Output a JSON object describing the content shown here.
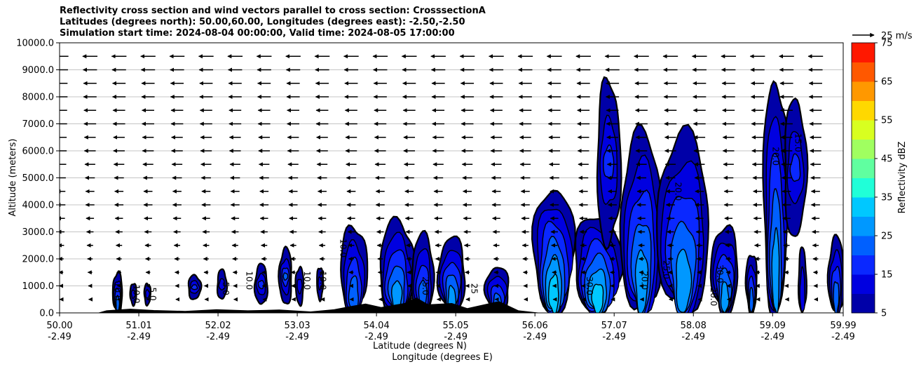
{
  "title": {
    "line1": "Reflectivity cross section and wind vectors parallel to cross section: CrosssectionA",
    "line2": "Latitudes (degrees north): 50.00,60.00, Longitudes (degrees east): -2.50,-2.50",
    "line3": "Simulation start time: 2024-08-04 00:00:00, Valid time: 2024-08-05 17:00:00"
  },
  "chart_data": {
    "type": "heatmap",
    "xlabel_line1": "Latitude (degrees N)",
    "xlabel_line2": "Longitude (degrees E)",
    "ylabel": "Altitude (meters)",
    "ylim": [
      0,
      10000
    ],
    "xlim": [
      50.0,
      59.99
    ],
    "grid": "horizontal",
    "y_ticks": [
      {
        "value": 0,
        "label": "0.0"
      },
      {
        "value": 1000,
        "label": "1000.0"
      },
      {
        "value": 2000,
        "label": "2000.0"
      },
      {
        "value": 3000,
        "label": "3000.0"
      },
      {
        "value": 4000,
        "label": "4000.0"
      },
      {
        "value": 5000,
        "label": "5000.0"
      },
      {
        "value": 6000,
        "label": "6000.0"
      },
      {
        "value": 7000,
        "label": "7000.0"
      },
      {
        "value": 8000,
        "label": "8000.0"
      },
      {
        "value": 9000,
        "label": "9000.0"
      },
      {
        "value": 10000,
        "label": "10000.0"
      }
    ],
    "x_ticks": [
      {
        "value": 50.0,
        "lat": "50.00",
        "lon": "-2.49"
      },
      {
        "value": 51.01,
        "lat": "51.01",
        "lon": "-2.49"
      },
      {
        "value": 52.02,
        "lat": "52.02",
        "lon": "-2.49"
      },
      {
        "value": 53.03,
        "lat": "53.03",
        "lon": "-2.49"
      },
      {
        "value": 54.04,
        "lat": "54.04",
        "lon": "-2.49"
      },
      {
        "value": 55.05,
        "lat": "55.05",
        "lon": "-2.49"
      },
      {
        "value": 56.06,
        "lat": "56.06",
        "lon": "-2.49"
      },
      {
        "value": 57.07,
        "lat": "57.07",
        "lon": "-2.49"
      },
      {
        "value": 58.08,
        "lat": "58.08",
        "lon": "-2.49"
      },
      {
        "value": 59.09,
        "lat": "59.09",
        "lon": "-2.49"
      },
      {
        "value": 59.99,
        "lat": "59.99",
        "lon": "-2.49"
      }
    ],
    "colorbar": {
      "label": "Reflectivity dBZ",
      "min": 5,
      "max": 75,
      "step": 5,
      "tick_labels": [
        "5",
        "15",
        "25",
        "35",
        "45",
        "55",
        "65",
        "75"
      ],
      "colors": [
        "#0000a8",
        "#0000e0",
        "#0a28ff",
        "#0060ff",
        "#0098ff",
        "#00c8ff",
        "#20ffd8",
        "#60ffa0",
        "#a0ff60",
        "#d8ff20",
        "#ffd800",
        "#ff9800",
        "#ff5800",
        "#ff1800"
      ]
    },
    "quiver_key": {
      "label": "25 m/s",
      "speed": 25
    },
    "wind_speed_ms": {
      "heights": [
        500,
        1000,
        1500,
        2000,
        2500,
        3000,
        3500,
        4000,
        4500,
        5000,
        5500,
        6000,
        6500,
        7000,
        7500,
        8000,
        8500,
        9000,
        9500
      ],
      "speeds": [
        3,
        4,
        5,
        6,
        7,
        8,
        9,
        10,
        10,
        11,
        12,
        13,
        13,
        14,
        14,
        15,
        15,
        16,
        17
      ]
    },
    "cells": [
      {
        "lat": 50.74,
        "base": 0,
        "top": 1500,
        "halfwidth": 0.06,
        "peak": 25
      },
      {
        "lat": 50.94,
        "base": 300,
        "top": 1100,
        "halfwidth": 0.04,
        "peak": 15
      },
      {
        "lat": 51.12,
        "base": 300,
        "top": 1100,
        "halfwidth": 0.04,
        "peak": 15
      },
      {
        "lat": 51.72,
        "base": 500,
        "top": 1400,
        "halfwidth": 0.08,
        "peak": 20
      },
      {
        "lat": 52.07,
        "base": 500,
        "top": 1600,
        "halfwidth": 0.06,
        "peak": 15
      },
      {
        "lat": 52.57,
        "base": 300,
        "top": 1800,
        "halfwidth": 0.08,
        "peak": 20
      },
      {
        "lat": 52.88,
        "base": 300,
        "top": 2400,
        "halfwidth": 0.08,
        "peak": 25
      },
      {
        "lat": 53.06,
        "base": 300,
        "top": 1700,
        "halfwidth": 0.05,
        "peak": 15
      },
      {
        "lat": 53.32,
        "base": 500,
        "top": 1700,
        "halfwidth": 0.04,
        "peak": 15
      },
      {
        "lat": 53.75,
        "base": 0,
        "top": 3200,
        "halfwidth": 0.17,
        "peak": 25
      },
      {
        "lat": 54.3,
        "base": 0,
        "top": 3400,
        "halfwidth": 0.22,
        "peak": 30
      },
      {
        "lat": 54.63,
        "base": 0,
        "top": 2900,
        "halfwidth": 0.14,
        "peak": 25
      },
      {
        "lat": 55.0,
        "base": 0,
        "top": 2800,
        "halfwidth": 0.17,
        "peak": 30
      },
      {
        "lat": 55.58,
        "base": 0,
        "top": 1700,
        "halfwidth": 0.15,
        "peak": 25
      },
      {
        "lat": 56.3,
        "base": 0,
        "top": 4600,
        "halfwidth": 0.26,
        "peak": 35
      },
      {
        "lat": 56.86,
        "base": 0,
        "top": 3600,
        "halfwidth": 0.3,
        "peak": 35
      },
      {
        "lat": 57.0,
        "base": 2500,
        "top": 8600,
        "halfwidth": 0.15,
        "peak": 20
      },
      {
        "lat": 57.42,
        "base": 0,
        "top": 6600,
        "halfwidth": 0.27,
        "peak": 30
      },
      {
        "lat": 57.95,
        "base": 0,
        "top": 6600,
        "halfwidth": 0.33,
        "peak": 30
      },
      {
        "lat": 58.48,
        "base": 0,
        "top": 3200,
        "halfwidth": 0.17,
        "peak": 30
      },
      {
        "lat": 58.82,
        "base": 0,
        "top": 2200,
        "halfwidth": 0.07,
        "peak": 25
      },
      {
        "lat": 59.13,
        "base": 0,
        "top": 8600,
        "halfwidth": 0.16,
        "peak": 30
      },
      {
        "lat": 59.38,
        "base": 2800,
        "top": 7900,
        "halfwidth": 0.14,
        "peak": 20
      },
      {
        "lat": 59.47,
        "base": 0,
        "top": 2400,
        "halfwidth": 0.05,
        "peak": 15
      },
      {
        "lat": 59.9,
        "base": 0,
        "top": 2800,
        "halfwidth": 0.1,
        "peak": 25
      }
    ],
    "terrain": [
      {
        "lat": 50.5,
        "alt": 0
      },
      {
        "lat": 50.6,
        "alt": 80
      },
      {
        "lat": 50.9,
        "alt": 140
      },
      {
        "lat": 51.2,
        "alt": 90
      },
      {
        "lat": 51.6,
        "alt": 60
      },
      {
        "lat": 52.0,
        "alt": 120
      },
      {
        "lat": 52.4,
        "alt": 80
      },
      {
        "lat": 52.8,
        "alt": 110
      },
      {
        "lat": 53.2,
        "alt": 40
      },
      {
        "lat": 53.5,
        "alt": 120
      },
      {
        "lat": 53.7,
        "alt": 230
      },
      {
        "lat": 53.9,
        "alt": 330
      },
      {
        "lat": 54.1,
        "alt": 200
      },
      {
        "lat": 54.4,
        "alt": 350
      },
      {
        "lat": 54.55,
        "alt": 550
      },
      {
        "lat": 54.7,
        "alt": 300
      },
      {
        "lat": 55.0,
        "alt": 350
      },
      {
        "lat": 55.2,
        "alt": 160
      },
      {
        "lat": 55.6,
        "alt": 420
      },
      {
        "lat": 55.85,
        "alt": 80
      },
      {
        "lat": 56.1,
        "alt": 0
      }
    ],
    "contour_labels": [
      {
        "lat": 50.7,
        "alt": 800,
        "label": "10.0"
      },
      {
        "lat": 50.94,
        "alt": 700,
        "label": "10.0"
      },
      {
        "lat": 51.15,
        "alt": 700,
        "label": "5.0"
      },
      {
        "lat": 52.08,
        "alt": 900,
        "label": "5.0"
      },
      {
        "lat": 52.38,
        "alt": 1200,
        "label": "10.0"
      },
      {
        "lat": 53.12,
        "alt": 1200,
        "label": "10.0"
      },
      {
        "lat": 53.32,
        "alt": 1200,
        "label": "10.0"
      },
      {
        "lat": 53.58,
        "alt": 2400,
        "label": "10.0"
      },
      {
        "lat": 54.63,
        "alt": 1000,
        "label": "25.0"
      },
      {
        "lat": 55.25,
        "alt": 900,
        "label": "25"
      },
      {
        "lat": 56.72,
        "alt": 1000,
        "label": "30.0"
      },
      {
        "lat": 57.42,
        "alt": 1200,
        "label": "20.0"
      },
      {
        "lat": 57.7,
        "alt": 1600,
        "label": "25.0"
      },
      {
        "lat": 58.38,
        "alt": 1450,
        "label": "30.0"
      },
      {
        "lat": 58.3,
        "alt": 600,
        "label": "20.0"
      },
      {
        "lat": 59.09,
        "alt": 5800,
        "label": "20.0"
      },
      {
        "lat": 59.38,
        "alt": 6300,
        "label": "15.0"
      },
      {
        "lat": 57.85,
        "alt": 4500,
        "label": "20.0"
      }
    ]
  }
}
